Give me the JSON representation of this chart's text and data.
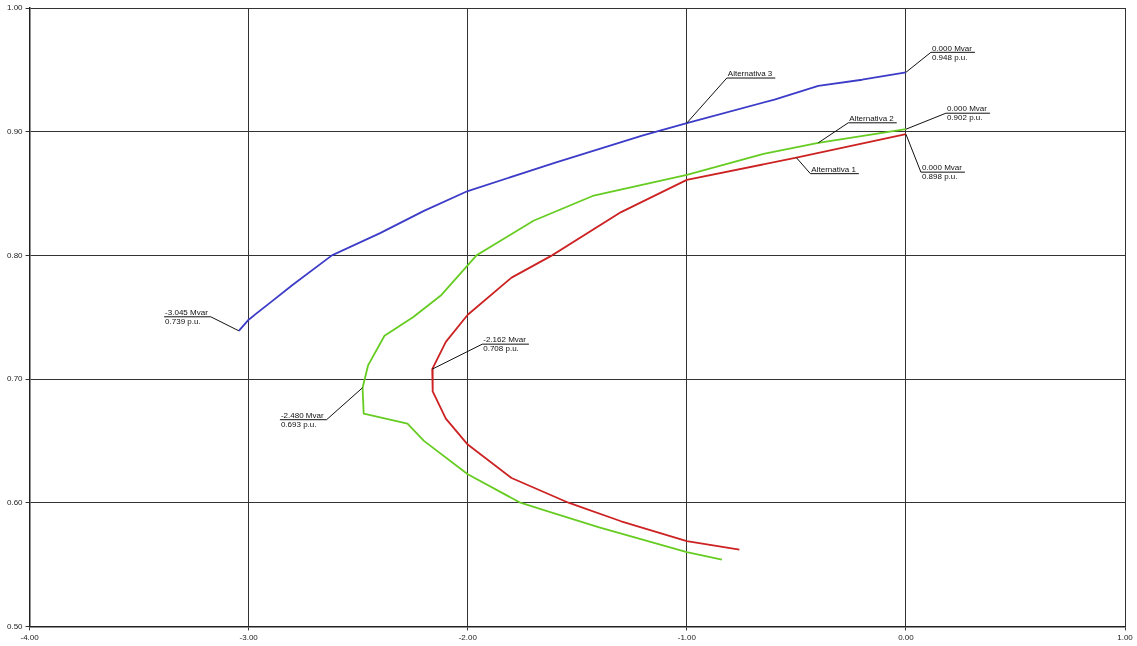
{
  "chart_data": {
    "type": "line",
    "marker": "none",
    "line_style": "solid",
    "grid": true,
    "legend": false,
    "xlim": [
      -4,
      1
    ],
    "ylim": [
      0.5,
      1
    ],
    "xticks": [
      {
        "value": -4,
        "label": "-4.00"
      },
      {
        "value": -3,
        "label": "-3.00"
      },
      {
        "value": -2,
        "label": "-2.00"
      },
      {
        "value": -1,
        "label": "-1.00"
      },
      {
        "value": 0,
        "label": "0.00"
      },
      {
        "value": 1,
        "label": "1.00"
      }
    ],
    "yticks": [
      {
        "value": 0.5,
        "label": "0.50"
      },
      {
        "value": 0.6,
        "label": "0.60"
      },
      {
        "value": 0.7,
        "label": "0.70"
      },
      {
        "value": 0.8,
        "label": "0.80"
      },
      {
        "value": 0.9,
        "label": "0.90"
      },
      {
        "value": 1,
        "label": "1.00"
      }
    ],
    "series": [
      {
        "name": "Alternativa 1",
        "color": "#cc2222",
        "x": [
          0,
          -0.5,
          -1.0,
          -1.3,
          -1.615,
          -1.8,
          -2.0,
          -2.1,
          -2.162,
          -2.16,
          -2.1,
          -2.0,
          -1.8,
          -1.54,
          -1.3,
          -1.0,
          -0.76
        ],
        "values": [
          0.898,
          0.879,
          0.861,
          0.835,
          0.8,
          0.782,
          0.752,
          0.73,
          0.708,
          0.69,
          0.668,
          0.647,
          0.62,
          0.6,
          0.585,
          0.569,
          0.562
        ]
      },
      {
        "name": "Alternativa 2",
        "color": "#66cc22",
        "x": [
          0,
          -0.4,
          -0.65,
          -1.0,
          -1.43,
          -1.7,
          -1.96,
          -2.12,
          -2.25,
          -2.38,
          -2.455,
          -2.48,
          -2.475,
          -2.275,
          -2.2,
          -2.0,
          -1.76,
          -1.4,
          -1.0,
          -0.84
        ],
        "values": [
          0.902,
          0.891,
          0.882,
          0.865,
          0.848,
          0.828,
          0.8,
          0.768,
          0.75,
          0.735,
          0.711,
          0.693,
          0.672,
          0.664,
          0.65,
          0.623,
          0.6,
          0.58,
          0.56,
          0.554
        ]
      },
      {
        "name": "Alternativa 3",
        "color": "#3c3cc8",
        "x": [
          -3.045,
          -3.0,
          -2.9,
          -2.8,
          -2.62,
          -2.4,
          -2.2,
          -2.0,
          -1.6,
          -1.2,
          -1.0,
          -0.6,
          -0.4,
          -0.2,
          0
        ],
        "values": [
          0.739,
          0.748,
          0.762,
          0.776,
          0.8,
          0.818,
          0.836,
          0.852,
          0.875,
          0.897,
          0.907,
          0.926,
          0.937,
          0.942,
          0.948
        ]
      }
    ],
    "annotations": [
      {
        "text": "-3.045 Mvar\n0.739 p.u.",
        "x": -3.045,
        "y": 0.739
      },
      {
        "text": "-2.480 Mvar\n0.693 p.u.",
        "x": -2.48,
        "y": 0.693
      },
      {
        "text": "-2.162 Mvar\n0.708 p.u.",
        "x": -2.162,
        "y": 0.708
      },
      {
        "text": "0.000 Mvar\n0.948 p.u.",
        "x": 0,
        "y": 0.948
      },
      {
        "text": "0.000 Mvar\n0.902 p.u.",
        "x": 0,
        "y": 0.902
      },
      {
        "text": "0.000 Mvar\n0.898 p.u.",
        "x": 0,
        "y": 0.898
      }
    ]
  }
}
